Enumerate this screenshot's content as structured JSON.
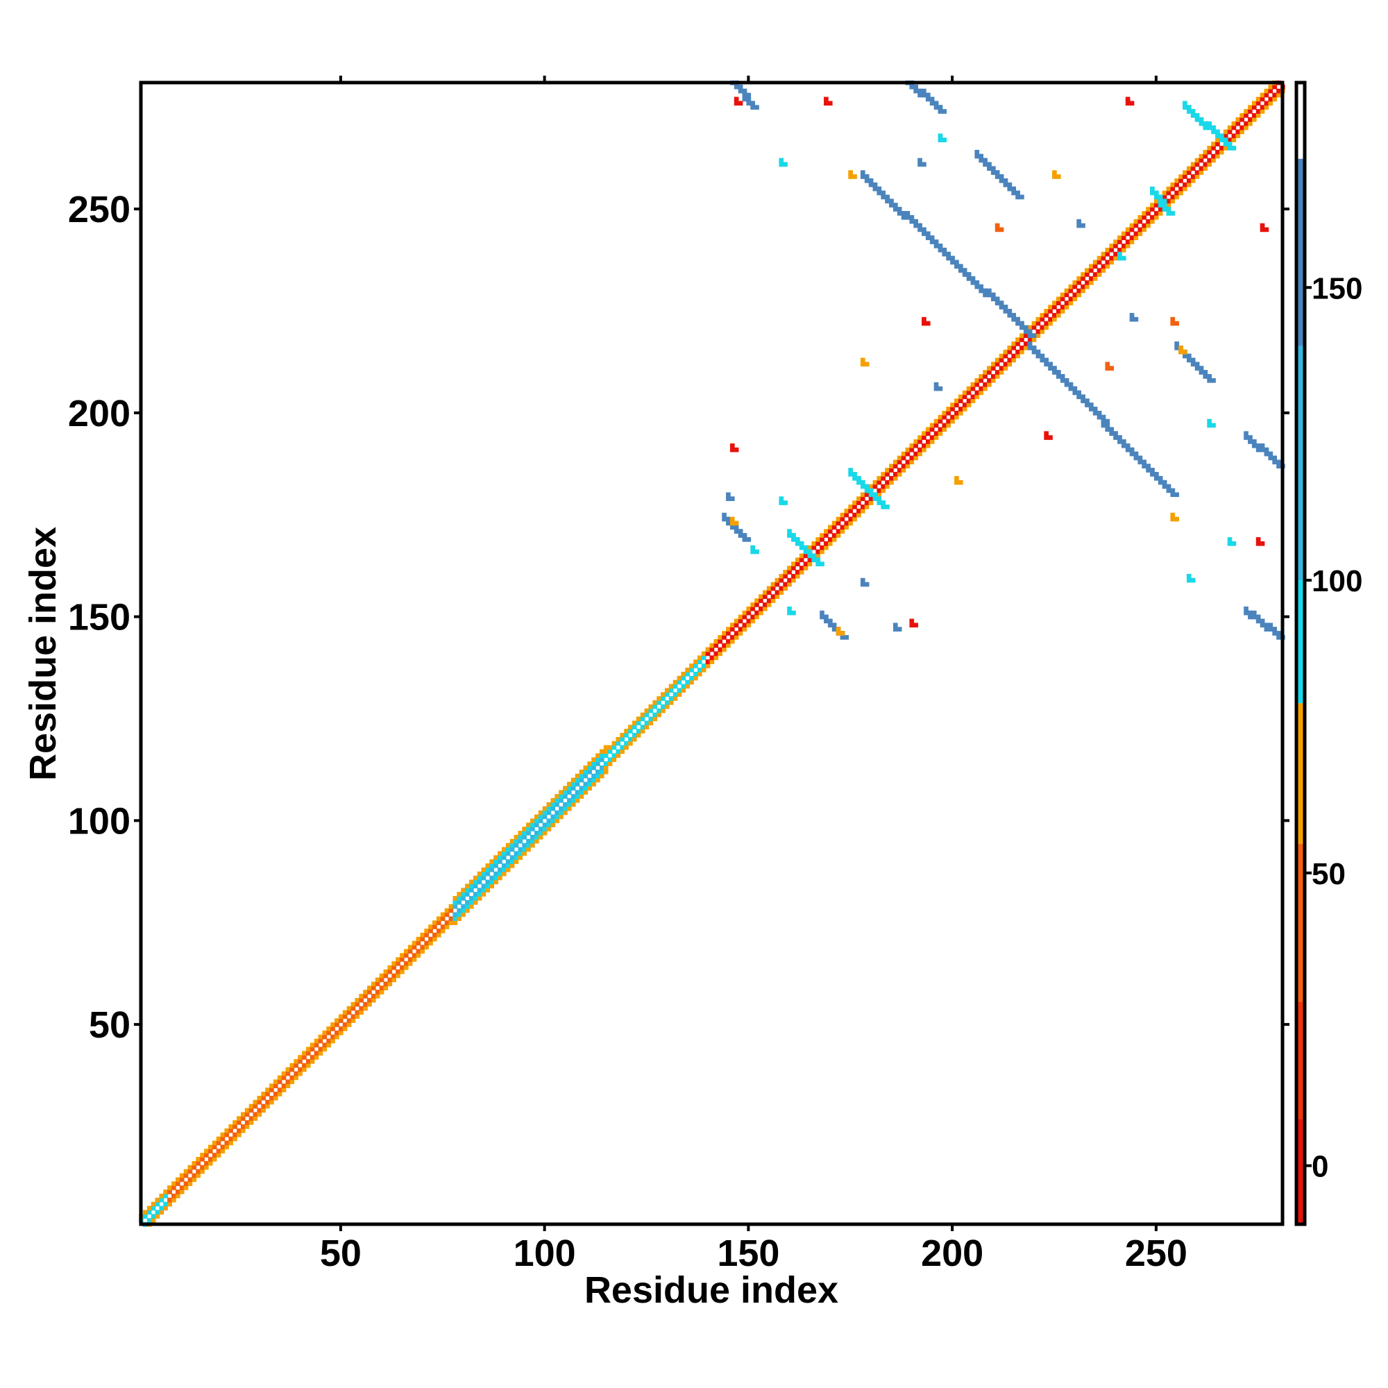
{
  "chart_data": {
    "type": "heatmap",
    "title": "",
    "xlabel": "Residue index",
    "ylabel": "Residue index",
    "xlim": [
      1,
      281
    ],
    "ylim": [
      1,
      281
    ],
    "x_ticks": [
      50,
      100,
      150,
      200,
      250
    ],
    "y_ticks": [
      50,
      100,
      150,
      200,
      250
    ],
    "grid": false,
    "colorbar": {
      "range": [
        -10,
        185
      ],
      "ticks": [
        0,
        50,
        100,
        150
      ],
      "bands": [
        {
          "from": -10,
          "to": 8,
          "color": "#e8120c"
        },
        {
          "from": 8,
          "to": 28,
          "color": "#f0350a"
        },
        {
          "from": 28,
          "to": 55,
          "color": "#f26010"
        },
        {
          "from": 55,
          "to": 79,
          "color": "#f5a000"
        },
        {
          "from": 79,
          "to": 100,
          "color": "#19d8e8"
        },
        {
          "from": 100,
          "to": 140,
          "color": "#35b6dc"
        },
        {
          "from": 140,
          "to": 172,
          "color": "#4b84bd"
        },
        {
          "from": 172,
          "to": 185,
          "color": "#ffffff"
        }
      ]
    },
    "diagonal_segments": [
      {
        "from": 1,
        "to": 8,
        "colors": [
          "#19d8e8",
          "#f5a000",
          "#ffffff"
        ]
      },
      {
        "from": 8,
        "to": 78,
        "colors": [
          "#f26010",
          "#f5a000",
          "#ffffff"
        ]
      },
      {
        "from": 78,
        "to": 115,
        "colors": [
          "#35b6dc",
          "#19d8e8",
          "#f5a000",
          "#f26010"
        ]
      },
      {
        "from": 115,
        "to": 140,
        "colors": [
          "#19d8e8",
          "#f5a000",
          "#f26010"
        ]
      },
      {
        "from": 140,
        "to": 281,
        "colors": [
          "#e8120c",
          "#f5a000",
          "#ffffff"
        ]
      }
    ],
    "contact_bands": [
      {
        "x": [
          146,
          151
        ],
        "y": [
          281,
          275
        ],
        "color": "#4b84bd"
      },
      {
        "x": [
          189,
          197
        ],
        "y": [
          281,
          274
        ],
        "color": "#4b84bd"
      },
      {
        "x": [
          178,
          219
        ],
        "y": [
          258,
          219
        ],
        "color": "#4b84bd"
      },
      {
        "x": [
          219,
          254
        ],
        "y": [
          216,
          180
        ],
        "color": "#4b84bd"
      },
      {
        "x": [
          206,
          216
        ],
        "y": [
          263,
          253
        ],
        "color": "#4b84bd"
      },
      {
        "x": [
          255,
          263
        ],
        "y": [
          216,
          208
        ],
        "color": "#4b84bd"
      },
      {
        "x": [
          272,
          280
        ],
        "y": [
          194,
          187
        ],
        "color": "#4b84bd"
      },
      {
        "x": [
          272,
          280
        ],
        "y": [
          151,
          145
        ],
        "color": "#4b84bd"
      },
      {
        "x": [
          144,
          149
        ],
        "y": [
          174,
          169
        ],
        "color": "#4b84bd"
      },
      {
        "x": [
          168,
          173
        ],
        "y": [
          150,
          145
        ],
        "color": "#4b84bd"
      },
      {
        "x": [
          175,
          183
        ],
        "y": [
          185,
          177
        ],
        "color": "#19d8e8"
      },
      {
        "x": [
          160,
          167
        ],
        "y": [
          170,
          163
        ],
        "color": "#19d8e8"
      },
      {
        "x": [
          257,
          268
        ],
        "y": [
          275,
          265
        ],
        "color": "#19d8e8"
      },
      {
        "x": [
          249,
          253
        ],
        "y": [
          254,
          249
        ],
        "color": "#19d8e8"
      }
    ],
    "contact_patches": [
      {
        "x": 197,
        "y": 267,
        "color": "#19d8e8"
      },
      {
        "x": 158,
        "y": 261,
        "color": "#19d8e8"
      },
      {
        "x": 151,
        "y": 166,
        "color": "#19d8e8"
      },
      {
        "x": 160,
        "y": 151,
        "color": "#19d8e8"
      },
      {
        "x": 158,
        "y": 178,
        "color": "#19d8e8"
      },
      {
        "x": 263,
        "y": 197,
        "color": "#19d8e8"
      },
      {
        "x": 258,
        "y": 159,
        "color": "#19d8e8"
      },
      {
        "x": 268,
        "y": 168,
        "color": "#19d8e8"
      },
      {
        "x": 241,
        "y": 238,
        "color": "#19d8e8"
      },
      {
        "x": 192,
        "y": 261,
        "color": "#4b84bd"
      },
      {
        "x": 231,
        "y": 246,
        "color": "#4b84bd"
      },
      {
        "x": 244,
        "y": 223,
        "color": "#4b84bd"
      },
      {
        "x": 196,
        "y": 206,
        "color": "#4b84bd"
      },
      {
        "x": 178,
        "y": 158,
        "color": "#4b84bd"
      },
      {
        "x": 186,
        "y": 147,
        "color": "#4b84bd"
      },
      {
        "x": 145,
        "y": 179,
        "color": "#4b84bd"
      },
      {
        "x": 147,
        "y": 276,
        "color": "#e8120c"
      },
      {
        "x": 169,
        "y": 276,
        "color": "#e8120c"
      },
      {
        "x": 243,
        "y": 276,
        "color": "#e8120c"
      },
      {
        "x": 276,
        "y": 245,
        "color": "#e8120c"
      },
      {
        "x": 146,
        "y": 191,
        "color": "#e8120c"
      },
      {
        "x": 190,
        "y": 148,
        "color": "#e8120c"
      },
      {
        "x": 275,
        "y": 168,
        "color": "#e8120c"
      },
      {
        "x": 193,
        "y": 222,
        "color": "#e8120c"
      },
      {
        "x": 223,
        "y": 194,
        "color": "#e8120c"
      },
      {
        "x": 175,
        "y": 258,
        "color": "#f5a000"
      },
      {
        "x": 225,
        "y": 258,
        "color": "#f5a000"
      },
      {
        "x": 211,
        "y": 245,
        "color": "#f26010"
      },
      {
        "x": 238,
        "y": 211,
        "color": "#f26010"
      },
      {
        "x": 254,
        "y": 222,
        "color": "#f26010"
      },
      {
        "x": 256,
        "y": 215,
        "color": "#f5a000"
      },
      {
        "x": 178,
        "y": 212,
        "color": "#f5a000"
      },
      {
        "x": 172,
        "y": 146,
        "color": "#f5a000"
      },
      {
        "x": 146,
        "y": 173,
        "color": "#f5a000"
      },
      {
        "x": 254,
        "y": 174,
        "color": "#f5a000"
      },
      {
        "x": 201,
        "y": 183,
        "color": "#f5a000"
      }
    ]
  }
}
